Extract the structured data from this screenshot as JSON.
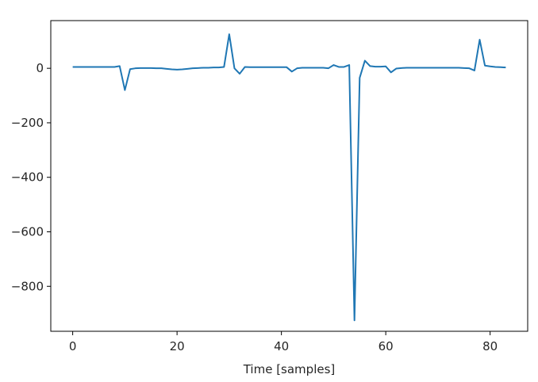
{
  "chart_data": {
    "type": "line",
    "title": "",
    "xlabel": "Time [samples]",
    "ylabel": "",
    "xlim": [
      -4.2,
      87.2
    ],
    "ylim": [
      -965,
      175
    ],
    "x_ticks": [
      0,
      20,
      40,
      60,
      80
    ],
    "y_ticks": [
      0,
      -200,
      -400,
      -600,
      -800
    ],
    "x_tick_labels": [
      "0",
      "20",
      "40",
      "60",
      "80"
    ],
    "y_tick_labels": [
      "0",
      "−200",
      "−400",
      "−600",
      "−800"
    ],
    "grid": false,
    "line_color": "#1f77b4",
    "series": [
      {
        "x": [
          0,
          1,
          2,
          3,
          4,
          5,
          6,
          7,
          8,
          9,
          10,
          11,
          12,
          13,
          14,
          15,
          16,
          17,
          18,
          19,
          20,
          21,
          22,
          23,
          24,
          25,
          26,
          27,
          28,
          29,
          30,
          31,
          32,
          33,
          34,
          35,
          36,
          37,
          38,
          39,
          40,
          41,
          42,
          43,
          44,
          45,
          46,
          47,
          48,
          49,
          50,
          51,
          52,
          53,
          54,
          55,
          56,
          57,
          58,
          59,
          60,
          61,
          62,
          63,
          64,
          65,
          66,
          67,
          68,
          69,
          70,
          71,
          72,
          73,
          74,
          75,
          76,
          77,
          78,
          79,
          80,
          81,
          82,
          83
        ],
        "values": [
          5,
          5,
          5,
          5,
          5,
          5,
          5,
          5,
          5,
          8,
          -80,
          -3,
          0,
          1,
          1,
          1,
          0,
          0,
          -2,
          -4,
          -5,
          -4,
          -2,
          0,
          1,
          2,
          2,
          3,
          3,
          5,
          125,
          0,
          -20,
          5,
          4,
          4,
          4,
          4,
          4,
          4,
          4,
          4,
          -12,
          0,
          2,
          2,
          2,
          2,
          2,
          0,
          12,
          5,
          5,
          12,
          -925,
          -35,
          28,
          8,
          6,
          6,
          7,
          -15,
          -1,
          1,
          2,
          2,
          2,
          2,
          2,
          2,
          2,
          2,
          2,
          2,
          2,
          1,
          0,
          -8,
          105,
          10,
          7,
          5,
          4,
          3
        ]
      }
    ]
  }
}
